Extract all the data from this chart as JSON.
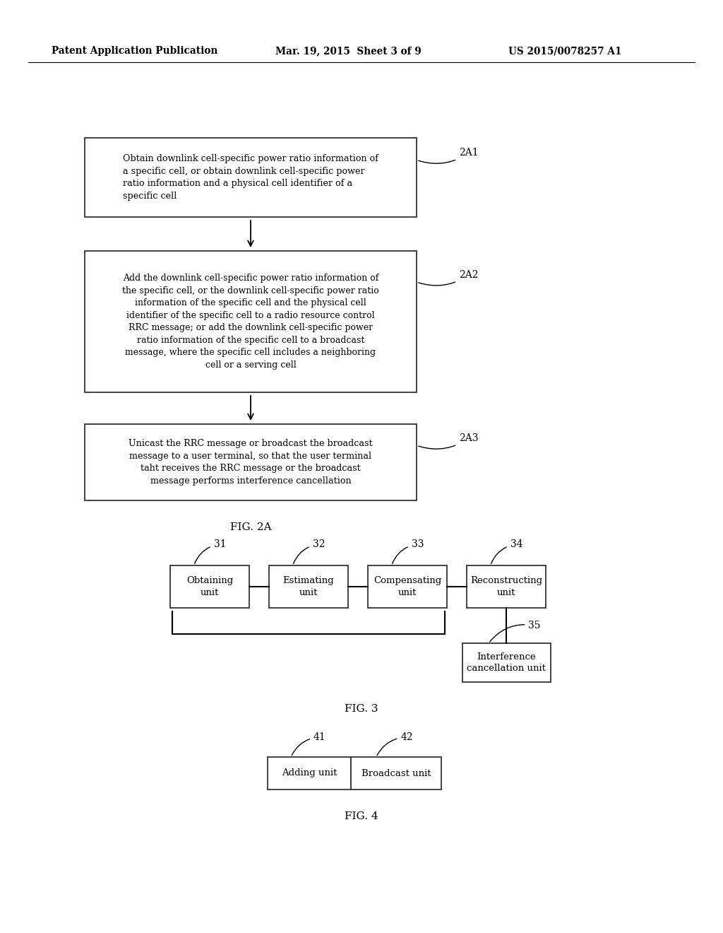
{
  "bg_color": "#ffffff",
  "header_left": "Patent Application Publication",
  "header_mid": "Mar. 19, 2015  Sheet 3 of 9",
  "header_right": "US 2015/0078257 A1",
  "fig2a_label": "FIG. 2A",
  "fig3_label": "FIG. 3",
  "fig4_label": "FIG. 4",
  "box1_text": "Obtain downlink cell-specific power ratio information of\na specific cell, or obtain downlink cell-specific power\nratio information and a physical cell identifier of a\nspecific cell",
  "box1_label": "2A1",
  "box2_text": "Add the downlink cell-specific power ratio information of\nthe specific cell, or the downlink cell-specific power ratio\ninformation of the specific cell and the physical cell\nidentifier of the specific cell to a radio resource control\nRRC message; or add the downlink cell-specific power\nratio information of the specific cell to a broadcast\nmessage, where the specific cell includes a neighboring\ncell or a serving cell",
  "box2_label": "2A2",
  "box3_text": "Unicast the RRC message or broadcast the broadcast\nmessage to a user terminal, so that the user terminal\ntaht receives the RRC message or the broadcast\nmessage performs interference cancellation",
  "box3_label": "2A3",
  "unit1_text": "Obtaining\nunit",
  "unit1_label": "31",
  "unit2_text": "Estimating\nunit",
  "unit2_label": "32",
  "unit3_text": "Compensating\nunit",
  "unit3_label": "33",
  "unit4_text": "Reconstructing\nunit",
  "unit4_label": "34",
  "unit5_text": "Interference\ncancellation unit",
  "unit5_label": "35",
  "adding_unit_text": "Adding unit",
  "adding_unit_label": "41",
  "broadcast_unit_text": "Broadcast unit",
  "broadcast_unit_label": "42"
}
